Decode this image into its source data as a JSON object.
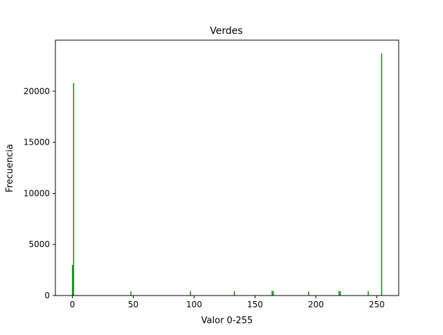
{
  "chart_data": {
    "type": "bar",
    "title": "Verdes",
    "xlabel": "Valor 0-255",
    "ylabel": "Frecuencia",
    "xlim": [
      -14,
      268
    ],
    "ylim": [
      0,
      25000
    ],
    "xticks": [
      0,
      50,
      100,
      150,
      200,
      250
    ],
    "yticks": [
      0,
      5000,
      10000,
      15000,
      20000
    ],
    "grid": false,
    "color": "#008000",
    "bar_width": 0.8,
    "x": [
      0,
      1,
      48,
      97,
      133,
      164,
      165,
      194,
      219,
      220,
      243,
      254
    ],
    "values": [
      3000,
      20800,
      420,
      430,
      440,
      480,
      420,
      400,
      460,
      420,
      440,
      23700
    ]
  }
}
